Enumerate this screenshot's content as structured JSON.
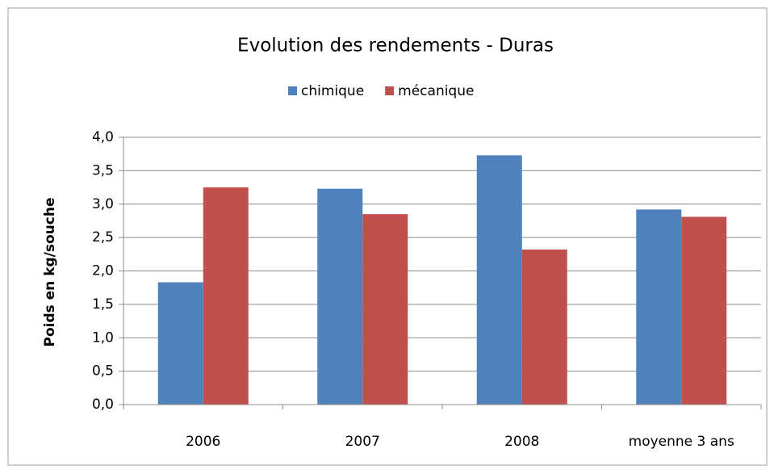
{
  "chart_data": {
    "type": "bar",
    "title": "Evolution des rendements - Duras",
    "y_label": "Poids en kg/souche",
    "categories": [
      "2006",
      "2007",
      "2008",
      "moyenne 3 ans"
    ],
    "series": [
      {
        "name": "chimique",
        "color": "#4f81bd",
        "values": [
          1.83,
          3.23,
          3.73,
          2.92
        ]
      },
      {
        "name": "mécanique",
        "color": "#c0504d",
        "values": [
          3.25,
          2.85,
          2.32,
          2.81
        ]
      }
    ],
    "ylim": [
      0,
      4
    ],
    "yticks": [
      {
        "value": 0,
        "label": "0,0"
      },
      {
        "value": 0.5,
        "label": "0,5"
      },
      {
        "value": 1,
        "label": "1,0"
      },
      {
        "value": 1.5,
        "label": "1,5"
      },
      {
        "value": 2,
        "label": "2,0"
      },
      {
        "value": 2.5,
        "label": "2,5"
      },
      {
        "value": 3,
        "label": "3,0"
      },
      {
        "value": 3.5,
        "label": "3,5"
      },
      {
        "value": 4,
        "label": "4,0"
      }
    ],
    "grid": true,
    "legend": "top"
  }
}
